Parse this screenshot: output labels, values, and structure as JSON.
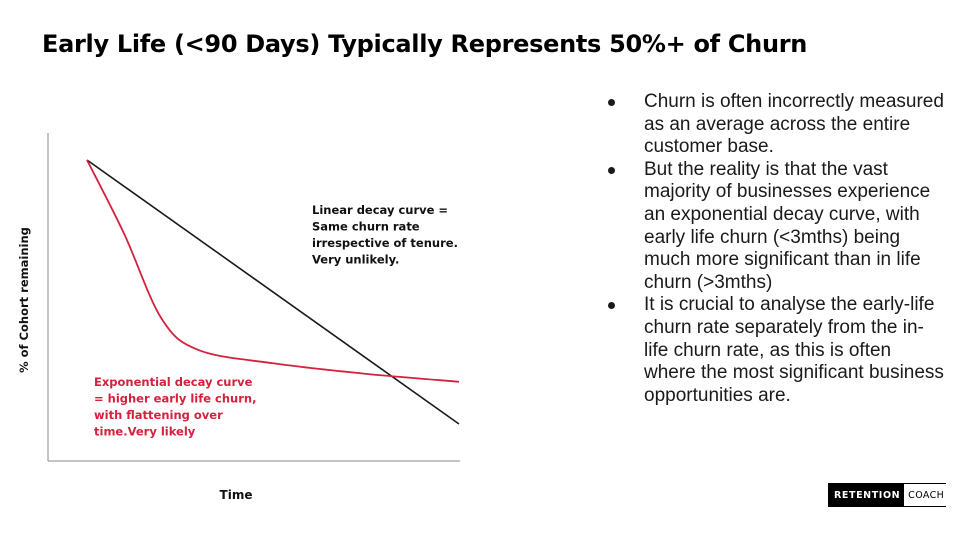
{
  "slide": {
    "title": "Early Life (<90 Days) Typically Represents 50%+ of Churn"
  },
  "chart_data": {
    "type": "line",
    "xlabel": "Time",
    "ylabel": "% of Cohort remaining",
    "grid": false,
    "series": [
      {
        "key": "linear",
        "label_lines": [
          "Linear decay curve =",
          "Same churn rate",
          "irrespective of tenure.",
          "Very unlikely."
        ],
        "color": "#1a1a1a",
        "shape": "linear",
        "points": [
          [
            0,
            100
          ],
          [
            100,
            0
          ]
        ]
      },
      {
        "key": "exponential",
        "label_lines": [
          "Exponential decay curve",
          "= higher early life churn,",
          "with flattening over",
          "time.Very likely"
        ],
        "color": "#d4213d",
        "shape": "exponential",
        "points": [
          [
            0,
            100
          ],
          [
            10,
            72
          ],
          [
            20,
            40
          ],
          [
            30,
            28
          ],
          [
            50,
            23
          ],
          [
            75,
            19
          ],
          [
            100,
            16
          ]
        ]
      }
    ]
  },
  "bullets": [
    "Churn is often incorrectly measured as an average across the entire customer base.",
    "But the reality is that the vast majority of businesses experience an exponential decay curve, with early life churn (<3mths) being much more significant than in life churn (>3mths)",
    "It is crucial to analyse the early-life churn rate separately from the in-life churn rate, as this is often where the most significant business opportunities are."
  ],
  "brand": {
    "part1": "RETENTION",
    "part2": "COACH"
  }
}
